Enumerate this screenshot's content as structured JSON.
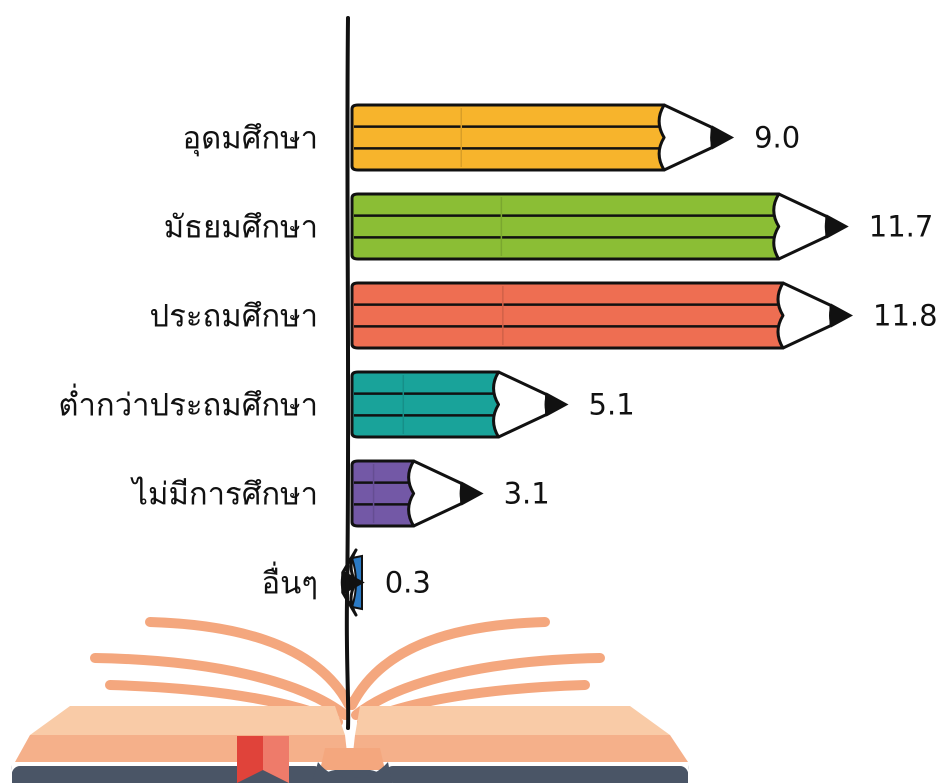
{
  "chart_data": {
    "type": "bar",
    "orientation": "horizontal",
    "title": "",
    "xlabel": "",
    "ylabel": "",
    "categories": [
      "อุดมศึกษา",
      "มัธยมศึกษา",
      "ประถมศึกษา",
      "ต่ำกว่าประถมศึกษา",
      "ไม่มีการศึกษา",
      "อื่นๆ"
    ],
    "values": [
      9.0,
      11.7,
      11.8,
      5.1,
      3.1,
      0.3
    ],
    "value_labels": [
      "9.0",
      "11.7",
      "11.8",
      "5.1",
      "3.1",
      "0.3"
    ],
    "bar_colors": [
      "#F7B42C",
      "#8BBE35",
      "#EE6E52",
      "#19A39A",
      "#7358A6",
      "#2B7AC4"
    ],
    "xlim": [
      0,
      12
    ],
    "grid": false,
    "legend": "none",
    "bar_style": "pencil"
  },
  "decoration": {
    "book_icon": "open-book-icon",
    "bookmark_icon": "bookmark-icon",
    "book_colors": {
      "pages_light": "#F9CBA7",
      "pages_mid": "#F5B08A",
      "rays": "#F4A77E",
      "cover": "#4A5566",
      "bookmark": "#E0433A",
      "bookmark_light": "#EE7B6A"
    }
  }
}
